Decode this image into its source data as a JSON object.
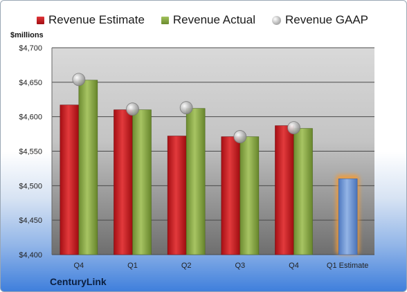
{
  "chart_data": {
    "type": "bar",
    "ylabel": "$millions",
    "ylim": [
      4400,
      4700
    ],
    "yticks": [
      "$4,700",
      "$4,650",
      "$4,600",
      "$4,550",
      "$4,500",
      "$4,450",
      "$4,400"
    ],
    "ytick_values": [
      4700,
      4650,
      4600,
      4550,
      4500,
      4450,
      4400
    ],
    "categories": [
      "Q4",
      "Q1",
      "Q2",
      "Q3",
      "Q4",
      "Q1 Estimate"
    ],
    "grid": true,
    "legend_position": "top",
    "series": [
      {
        "name": "Revenue Estimate",
        "kind": "bar",
        "color": "#c0161c",
        "values": [
          4617,
          4610,
          4572,
          4571,
          4587,
          null
        ]
      },
      {
        "name": "Revenue Actual",
        "kind": "bar",
        "color": "#7a9a3a",
        "values": [
          4653,
          4610,
          4612,
          4571,
          4583,
          null
        ]
      },
      {
        "name": "Revenue GAAP",
        "kind": "marker",
        "color": "#a6a6a6",
        "values": [
          4654,
          4611,
          4613,
          4571,
          4584,
          null
        ]
      }
    ],
    "estimate_bar": {
      "category": "Q1 Estimate",
      "value": 4510,
      "color": "#6b95d2",
      "glow": "#f29b38"
    }
  },
  "company": "CenturyLink"
}
